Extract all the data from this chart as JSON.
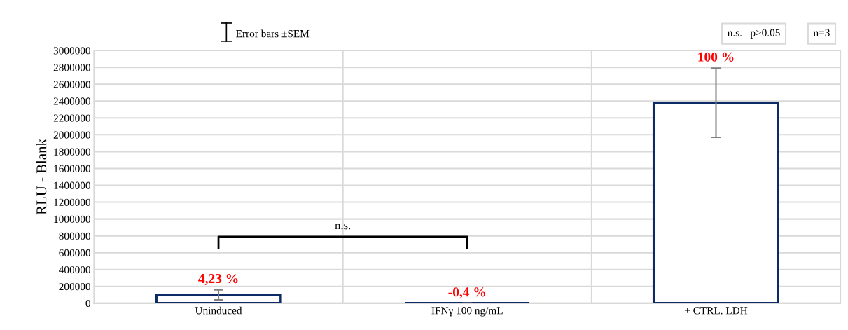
{
  "chart_data": {
    "type": "bar",
    "ylabel": "RLU - Blank",
    "categories": [
      "Uninduced",
      "IFNγ 100 ng/mL",
      "+ CTRL. LDH"
    ],
    "values": [
      100000,
      0,
      2380000
    ],
    "errors": [
      60000,
      null,
      410000
    ],
    "color": "#0b2a66",
    "ylim": [
      0,
      3000000
    ],
    "yticks": [
      0,
      200000,
      400000,
      600000,
      800000,
      1000000,
      1200000,
      1400000,
      1600000,
      1800000,
      2000000,
      2200000,
      2400000,
      2600000,
      2800000,
      3000000
    ],
    "grid": true,
    "annotations": [
      "Error bars ±SEM",
      "n.s.   p>0.05",
      "n=3",
      "n.s.",
      {
        "text": "4,23 %",
        "x": "Uninduced",
        "y": 160000
      },
      {
        "text": "-0,4 %",
        "x": "IFNγ 100 ng/mL",
        "y": 0
      },
      {
        "text": "100 %",
        "x": "+ CTRL. LDH",
        "y": 2790000
      }
    ]
  }
}
